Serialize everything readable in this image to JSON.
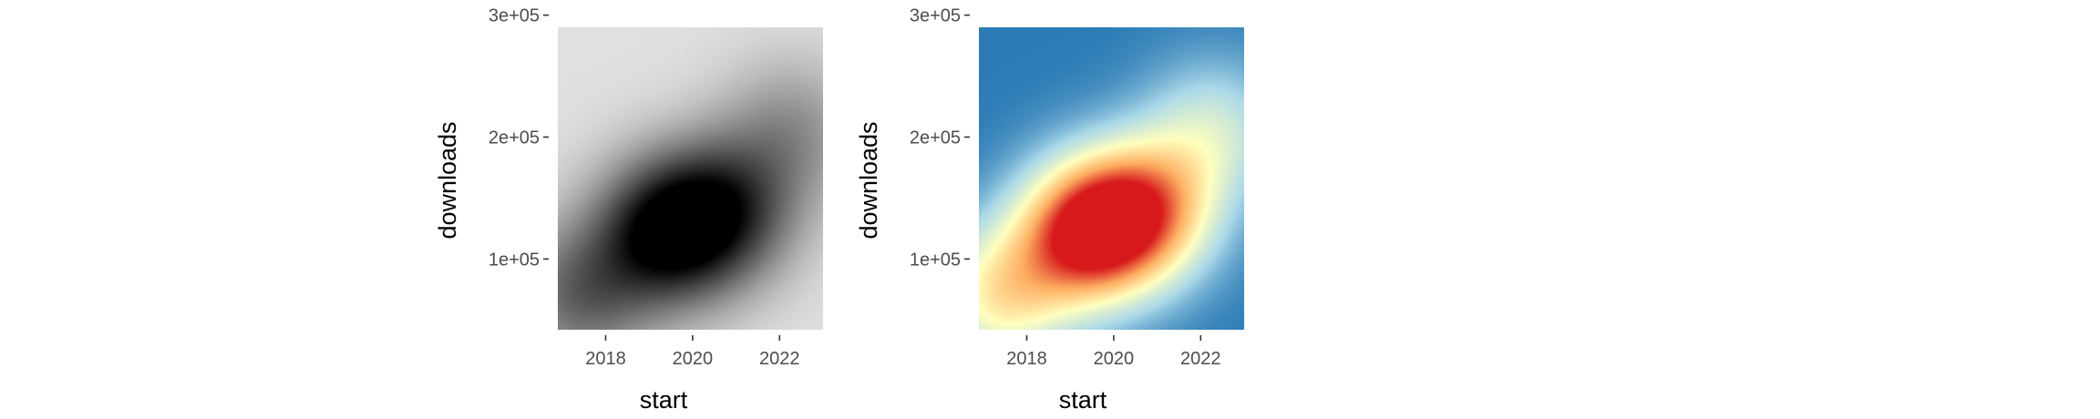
{
  "chart_data": [
    {
      "type": "heatmap",
      "title": "",
      "xlabel": "start",
      "ylabel": "downloads",
      "xlim": [
        2016.9,
        2023.0
      ],
      "ylim": [
        42000,
        290000
      ],
      "x_ticks": [
        2018,
        2020,
        2022
      ],
      "x_tick_labels": [
        "2018",
        "2020",
        "2022"
      ],
      "y_ticks": [
        100000,
        200000,
        300000
      ],
      "y_tick_labels": [
        "1e+05",
        "2e+05",
        "3e+05"
      ],
      "grid": false,
      "legend": "none",
      "color_low": "#e0e0e0",
      "color_high": "#000000",
      "density_peaks": [
        {
          "x": 2019.4,
          "y": 122000,
          "weight": 1.0
        },
        {
          "x": 2017.4,
          "y": 70000,
          "weight": 0.55
        },
        {
          "x": 2020.8,
          "y": 140000,
          "weight": 0.7
        },
        {
          "x": 2022.3,
          "y": 205000,
          "weight": 0.35
        }
      ]
    },
    {
      "type": "heatmap",
      "title": "",
      "xlabel": "start",
      "ylabel": "downloads",
      "xlim": [
        2016.9,
        2023.0
      ],
      "ylim": [
        42000,
        290000
      ],
      "x_ticks": [
        2018,
        2020,
        2022
      ],
      "x_tick_labels": [
        "2018",
        "2020",
        "2022"
      ],
      "y_ticks": [
        100000,
        200000,
        300000
      ],
      "y_tick_labels": [
        "1e+05",
        "2e+05",
        "3e+05"
      ],
      "grid": false,
      "legend": "none",
      "color_scale": [
        "#2c7bb6",
        "#abd9e9",
        "#ffffbf",
        "#fdae61",
        "#d7191c"
      ],
      "density_peaks": [
        {
          "x": 2019.4,
          "y": 122000,
          "weight": 1.0
        },
        {
          "x": 2017.4,
          "y": 70000,
          "weight": 0.55
        },
        {
          "x": 2020.8,
          "y": 140000,
          "weight": 0.7
        },
        {
          "x": 2022.3,
          "y": 205000,
          "weight": 0.35
        }
      ]
    }
  ]
}
